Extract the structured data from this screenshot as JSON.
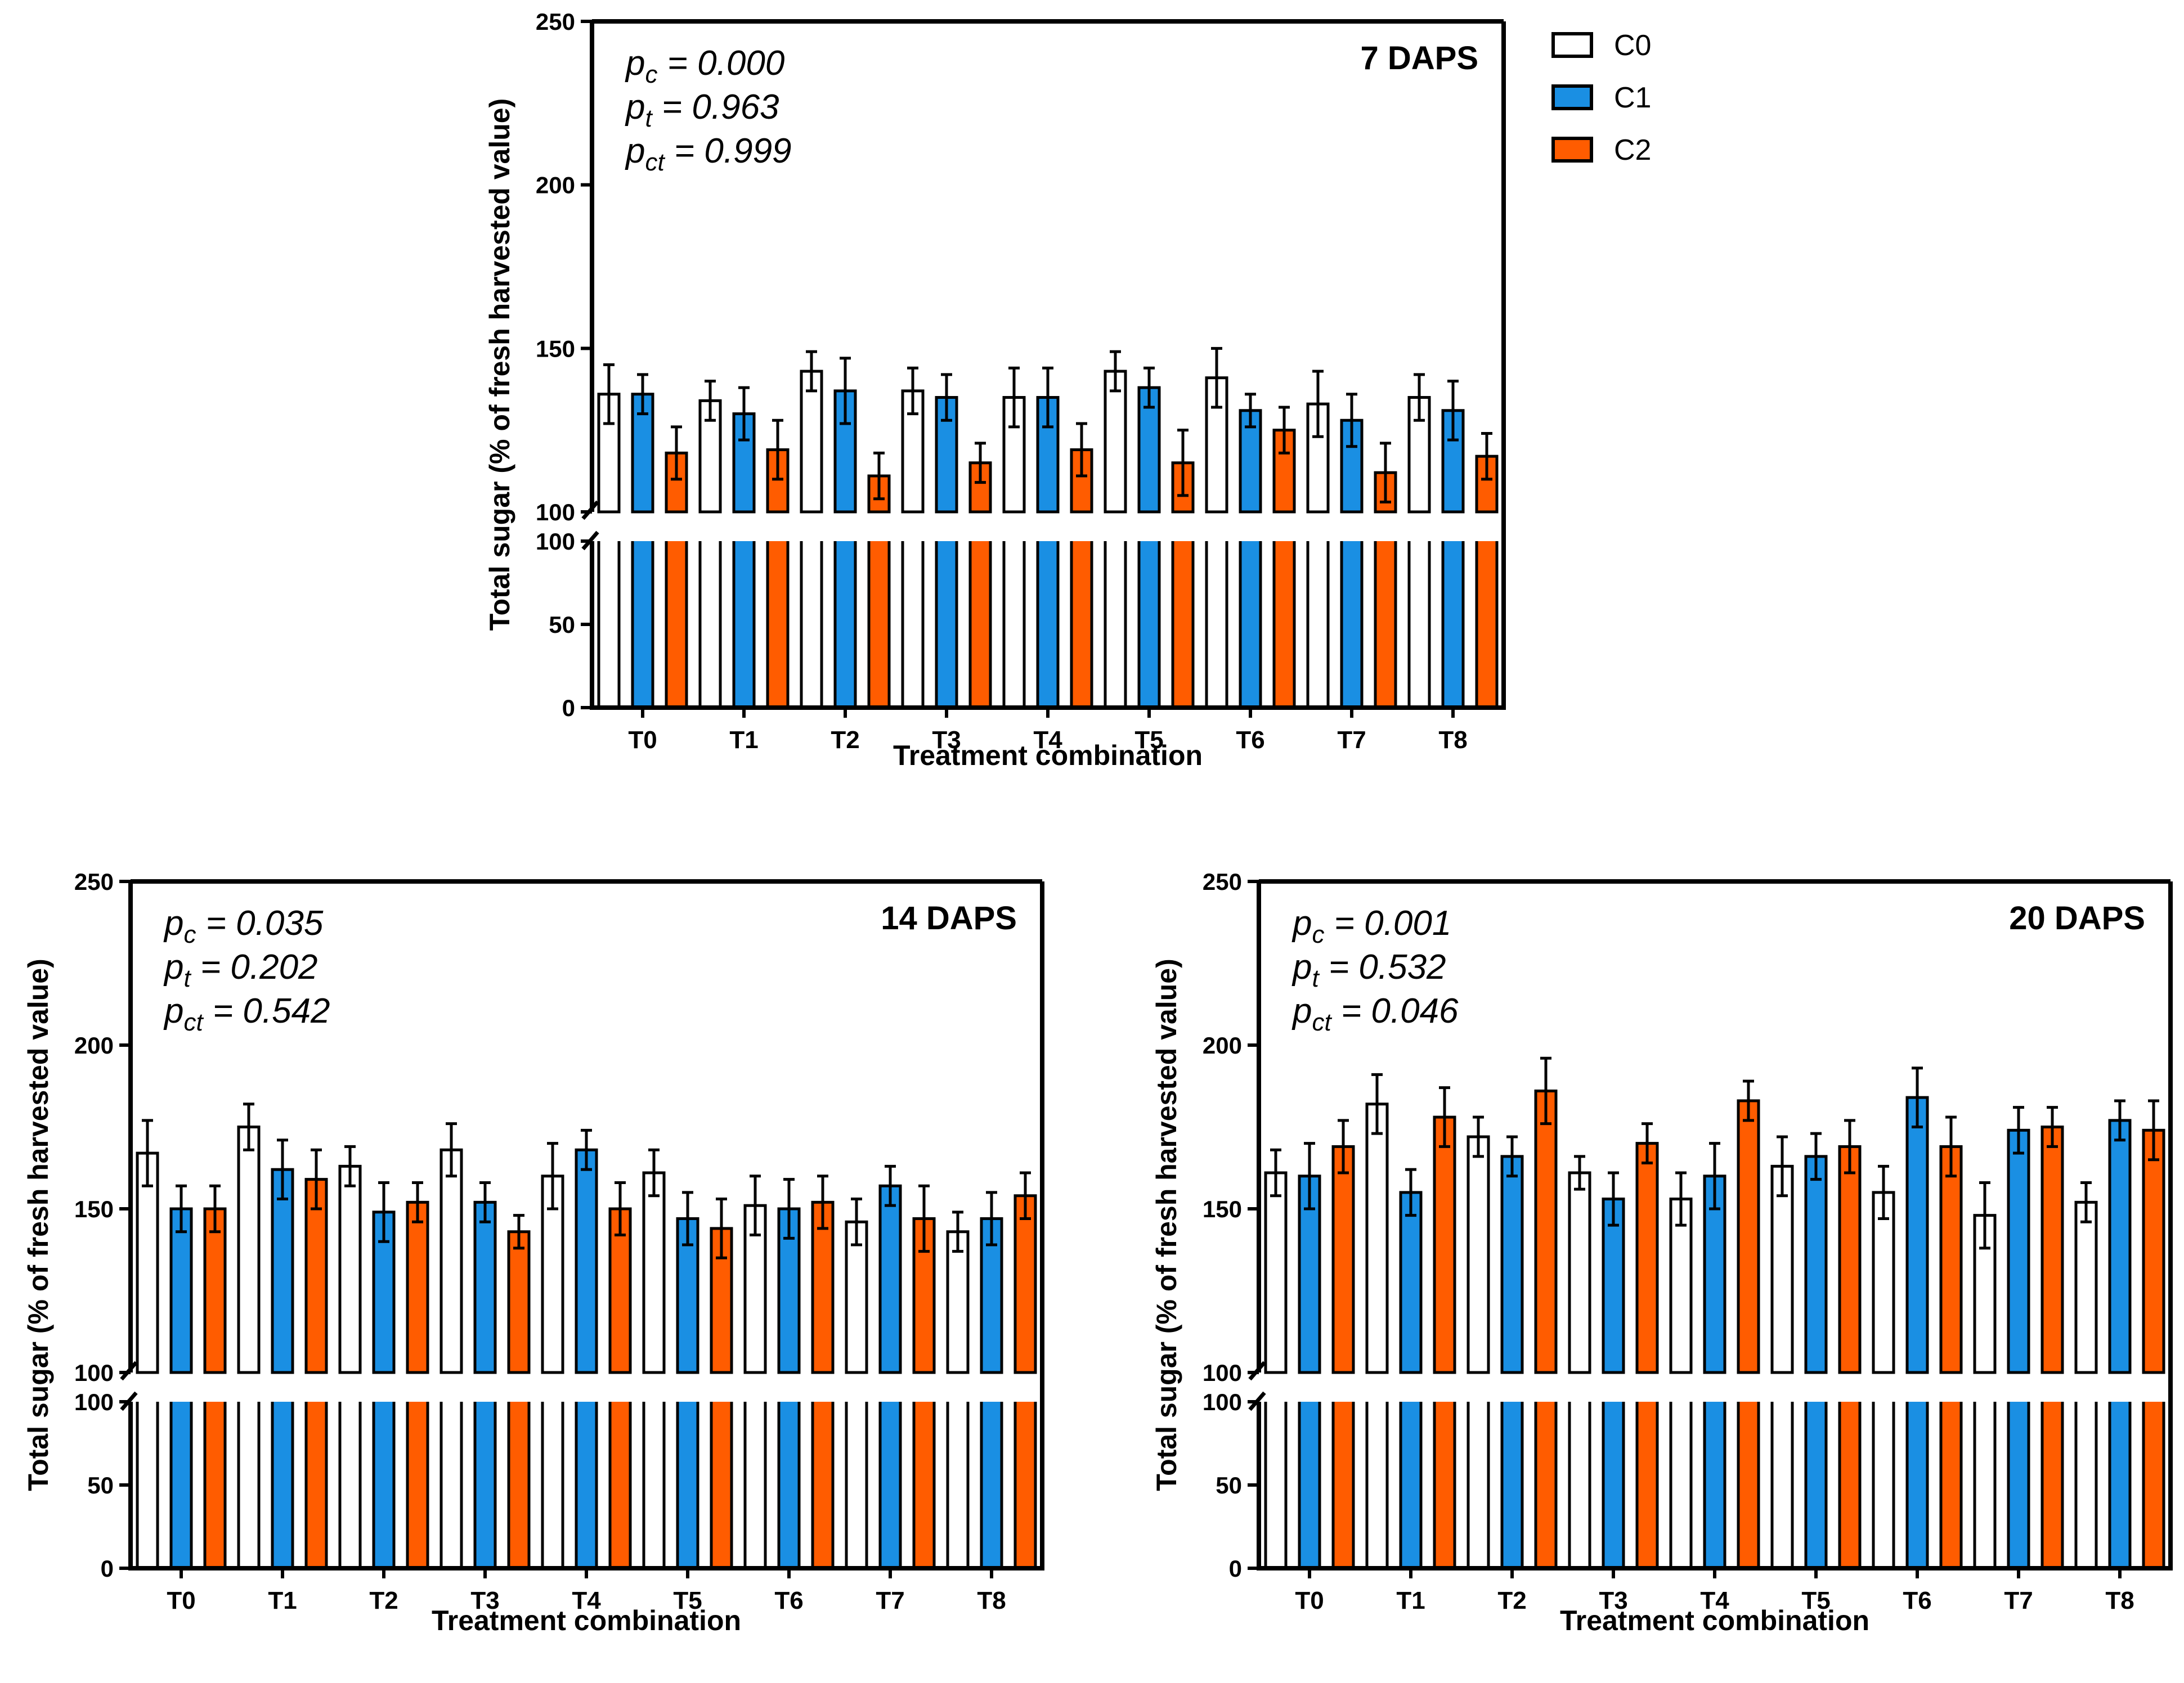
{
  "colors": {
    "C0": "#ffffff",
    "C1": "#1a8fe3",
    "C2": "#ff5c00",
    "axis": "#000000"
  },
  "legend": {
    "items": [
      "C0",
      "C1",
      "C2"
    ]
  },
  "chart_data": [
    {
      "type": "bar",
      "title": "7 DAPS",
      "annotations": [
        {
          "sym": "p",
          "sub": "c",
          "value": "= 0.000"
        },
        {
          "sym": "p",
          "sub": "t",
          "value": "= 0.963"
        },
        {
          "sym": "p",
          "sub": "ct",
          "value": "= 0.999"
        }
      ],
      "xlabel": "Treatment combination",
      "ylabel": "Total sugar (% of fresh harvested value)",
      "upper_ticks": [
        "100",
        "150",
        "200",
        "250"
      ],
      "lower_ticks": [
        "0",
        "50",
        "100"
      ],
      "ylim": [
        0,
        250
      ],
      "axis_break": [
        100,
        100
      ],
      "categories": [
        "T0",
        "T1",
        "T2",
        "T3",
        "T4",
        "T5",
        "T6",
        "T7",
        "T8"
      ],
      "series": [
        {
          "name": "C0",
          "values": [
            136,
            134,
            143,
            137,
            135,
            143,
            141,
            133,
            135
          ],
          "errors": [
            9,
            6,
            6,
            7,
            9,
            6,
            9,
            10,
            7
          ]
        },
        {
          "name": "C1",
          "values": [
            136,
            130,
            137,
            135,
            135,
            138,
            131,
            128,
            131
          ],
          "errors": [
            6,
            8,
            10,
            7,
            9,
            6,
            5,
            8,
            9
          ]
        },
        {
          "name": "C2",
          "values": [
            118,
            119,
            111,
            115,
            119,
            115,
            125,
            112,
            117
          ],
          "errors": [
            8,
            9,
            7,
            6,
            8,
            10,
            7,
            9,
            7
          ]
        }
      ]
    },
    {
      "type": "bar",
      "title": "14 DAPS",
      "annotations": [
        {
          "sym": "p",
          "sub": "c",
          "value": "= 0.035"
        },
        {
          "sym": "p",
          "sub": "t",
          "value": "= 0.202"
        },
        {
          "sym": "p",
          "sub": "ct",
          "value": "= 0.542"
        }
      ],
      "xlabel": "Treatment combination",
      "ylabel": "Total sugar (% of fresh harvested value)",
      "upper_ticks": [
        "100",
        "150",
        "200",
        "250"
      ],
      "lower_ticks": [
        "0",
        "50",
        "100"
      ],
      "ylim": [
        0,
        250
      ],
      "axis_break": [
        100,
        100
      ],
      "categories": [
        "T0",
        "T1",
        "T2",
        "T3",
        "T4",
        "T5",
        "T6",
        "T7",
        "T8"
      ],
      "series": [
        {
          "name": "C0",
          "values": [
            167,
            175,
            163,
            168,
            160,
            161,
            151,
            146,
            143
          ],
          "errors": [
            10,
            7,
            6,
            8,
            10,
            7,
            9,
            7,
            6
          ]
        },
        {
          "name": "C1",
          "values": [
            150,
            162,
            149,
            152,
            168,
            147,
            150,
            157,
            147
          ],
          "errors": [
            7,
            9,
            9,
            6,
            6,
            8,
            9,
            6,
            8
          ]
        },
        {
          "name": "C2",
          "values": [
            150,
            159,
            152,
            143,
            150,
            144,
            152,
            147,
            154
          ],
          "errors": [
            7,
            9,
            6,
            5,
            8,
            9,
            8,
            10,
            7
          ]
        }
      ]
    },
    {
      "type": "bar",
      "title": "20 DAPS",
      "annotations": [
        {
          "sym": "p",
          "sub": "c",
          "value": "= 0.001"
        },
        {
          "sym": "p",
          "sub": "t",
          "value": "= 0.532"
        },
        {
          "sym": "p",
          "sub": "ct",
          "value": "= 0.046"
        }
      ],
      "xlabel": "Treatment combination",
      "ylabel": "Total sugar (% of fresh harvested value)",
      "upper_ticks": [
        "100",
        "150",
        "200",
        "250"
      ],
      "lower_ticks": [
        "0",
        "50",
        "100"
      ],
      "ylim": [
        0,
        250
      ],
      "axis_break": [
        100,
        100
      ],
      "categories": [
        "T0",
        "T1",
        "T2",
        "T3",
        "T4",
        "T5",
        "T6",
        "T7",
        "T8"
      ],
      "series": [
        {
          "name": "C0",
          "values": [
            161,
            182,
            172,
            161,
            153,
            163,
            155,
            148,
            152
          ],
          "errors": [
            7,
            9,
            6,
            5,
            8,
            9,
            8,
            10,
            6
          ]
        },
        {
          "name": "C1",
          "values": [
            160,
            155,
            166,
            153,
            160,
            166,
            184,
            174,
            177
          ],
          "errors": [
            10,
            7,
            6,
            8,
            10,
            7,
            9,
            7,
            6
          ]
        },
        {
          "name": "C2",
          "values": [
            169,
            178,
            186,
            170,
            183,
            169,
            169,
            175,
            174
          ],
          "errors": [
            8,
            9,
            10,
            6,
            6,
            8,
            9,
            6,
            9
          ]
        }
      ]
    }
  ]
}
